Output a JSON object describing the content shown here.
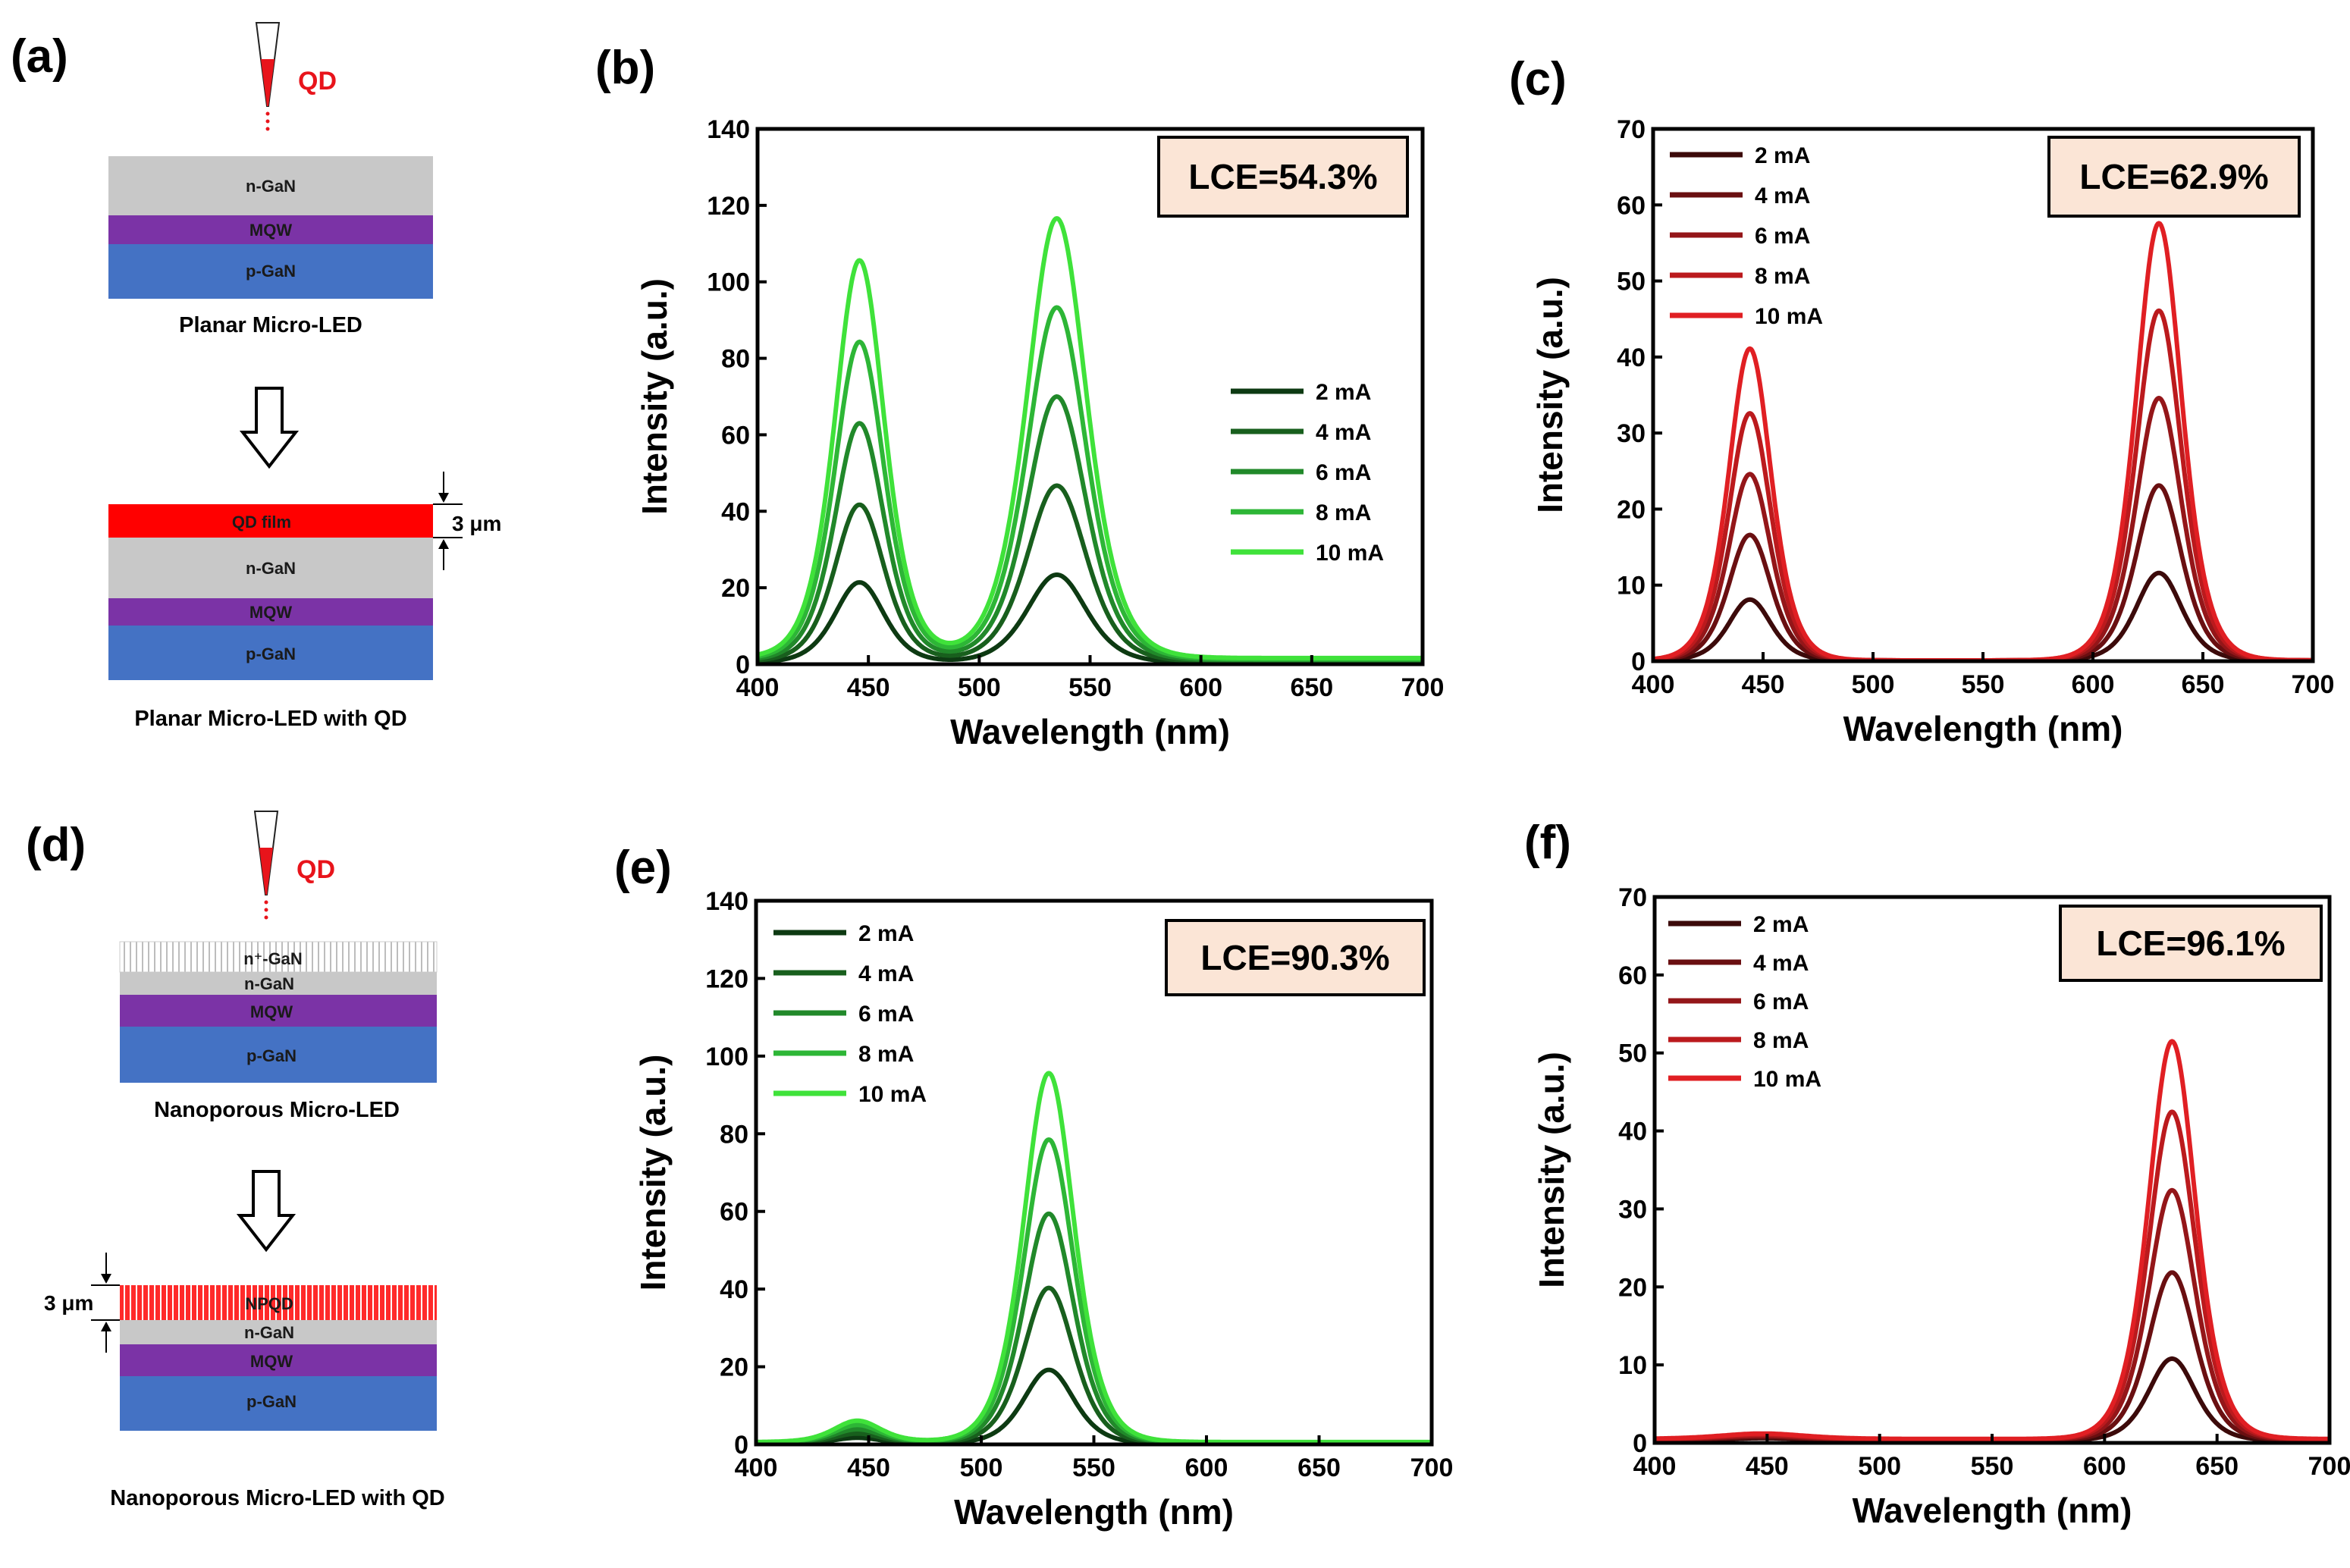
{
  "panel_labels": {
    "a": "(a)",
    "b": "(b)",
    "c": "(c)",
    "d": "(d)",
    "e": "(e)",
    "f": "(f)"
  },
  "colors": {
    "green": [
      "#0d3a12",
      "#185f1d",
      "#21892a",
      "#2db636",
      "#3fe23a"
    ],
    "red": [
      "#3c0a0a",
      "#6a0f11",
      "#941619",
      "#bb1a1d",
      "#e01f23"
    ],
    "ngan": "#c8c8c8",
    "mqw": "#7b33a6",
    "pgan": "#4472c4",
    "qd": "#ff1a1a",
    "lce_box": "#fbe5d6"
  },
  "schematics": {
    "a": {
      "dropper_label": "QD",
      "layers": [
        "n-GaN",
        "MQW",
        "p-GaN"
      ],
      "caption": "Planar Micro-LED"
    },
    "a2": {
      "layers": [
        "QD film",
        "n-GaN",
        "MQW",
        "p-GaN"
      ],
      "thickness": "3 μm",
      "caption": "Planar Micro-LED with QD"
    },
    "d": {
      "dropper_label": "QD",
      "layers": [
        "n⁺-GaN",
        "n-GaN",
        "MQW",
        "p-GaN"
      ],
      "caption": "Nanoporous Micro-LED"
    },
    "d2": {
      "layers": [
        "NPQD",
        "n-GaN",
        "MQW",
        "p-GaN"
      ],
      "thickness": "3 μm",
      "caption": "Nanoporous Micro-LED with QD"
    }
  },
  "chart_data": [
    {
      "panel": "b",
      "type": "line",
      "xlabel": "Wavelength (nm)",
      "ylabel": "Intensity (a.u.)",
      "xlim": [
        400,
        700
      ],
      "ylim": [
        0,
        140
      ],
      "xticks": [
        400,
        450,
        500,
        550,
        600,
        650,
        700
      ],
      "yticks": [
        0,
        20,
        40,
        60,
        80,
        100,
        120,
        140
      ],
      "annotation": "LCE=54.3%",
      "legend_position": "middle-right",
      "palette": "green",
      "series": [
        {
          "name": "2 mA",
          "peaks": [
            {
              "center": 446,
              "height": 21,
              "width": 15
            },
            {
              "center": 535,
              "height": 23,
              "width": 18
            }
          ],
          "baseline": 0.4
        },
        {
          "name": "4 mA",
          "peaks": [
            {
              "center": 446,
              "height": 41,
              "width": 15
            },
            {
              "center": 535,
              "height": 46,
              "width": 18
            }
          ],
          "baseline": 0.7
        },
        {
          "name": "6 mA",
          "peaks": [
            {
              "center": 446,
              "height": 62,
              "width": 15
            },
            {
              "center": 535,
              "height": 69,
              "width": 18
            }
          ],
          "baseline": 1.0
        },
        {
          "name": "8 mA",
          "peaks": [
            {
              "center": 446,
              "height": 83,
              "width": 15
            },
            {
              "center": 535,
              "height": 92,
              "width": 18
            }
          ],
          "baseline": 1.3
        },
        {
          "name": "10 mA",
          "peaks": [
            {
              "center": 446,
              "height": 104,
              "width": 15
            },
            {
              "center": 535,
              "height": 115,
              "width": 18
            }
          ],
          "baseline": 1.6
        }
      ]
    },
    {
      "panel": "c",
      "type": "line",
      "xlabel": "Wavelength (nm)",
      "ylabel": "Intensity (a.u.)",
      "xlim": [
        400,
        700
      ],
      "ylim": [
        0,
        70
      ],
      "xticks": [
        400,
        450,
        500,
        550,
        600,
        650,
        700
      ],
      "yticks": [
        0,
        10,
        20,
        30,
        40,
        50,
        60,
        70
      ],
      "annotation": "LCE=62.9%",
      "legend_position": "top-left",
      "palette": "red",
      "series": [
        {
          "name": "2 mA",
          "peaks": [
            {
              "center": 444,
              "height": 8,
              "width": 13
            },
            {
              "center": 630,
              "height": 11.5,
              "width": 14
            }
          ],
          "baseline": 0.1
        },
        {
          "name": "4 mA",
          "peaks": [
            {
              "center": 444,
              "height": 16.5,
              "width": 13
            },
            {
              "center": 630,
              "height": 23,
              "width": 14
            }
          ],
          "baseline": 0.1
        },
        {
          "name": "6 mA",
          "peaks": [
            {
              "center": 444,
              "height": 24.5,
              "width": 13
            },
            {
              "center": 630,
              "height": 34.5,
              "width": 14
            }
          ],
          "baseline": 0.1
        },
        {
          "name": "8 mA",
          "peaks": [
            {
              "center": 444,
              "height": 32.5,
              "width": 13
            },
            {
              "center": 630,
              "height": 46,
              "width": 14
            }
          ],
          "baseline": 0.1
        },
        {
          "name": "10 mA",
          "peaks": [
            {
              "center": 444,
              "height": 41,
              "width": 13
            },
            {
              "center": 630,
              "height": 57.5,
              "width": 14
            }
          ],
          "baseline": 0.1
        }
      ]
    },
    {
      "panel": "e",
      "type": "line",
      "xlabel": "Wavelength (nm)",
      "ylabel": "Intensity (a.u.)",
      "xlim": [
        400,
        700
      ],
      "ylim": [
        0,
        140
      ],
      "xticks": [
        400,
        450,
        500,
        550,
        600,
        650,
        700
      ],
      "yticks": [
        0,
        20,
        40,
        60,
        80,
        100,
        120,
        140
      ],
      "annotation": "LCE=90.3%",
      "legend_position": "top-left",
      "palette": "green",
      "series": [
        {
          "name": "2 mA",
          "peaks": [
            {
              "center": 445,
              "height": 1.5,
              "width": 14
            },
            {
              "center": 530,
              "height": 19,
              "width": 15
            }
          ],
          "baseline": 0.2
        },
        {
          "name": "4 mA",
          "peaks": [
            {
              "center": 445,
              "height": 2.5,
              "width": 14
            },
            {
              "center": 530,
              "height": 40,
              "width": 15
            }
          ],
          "baseline": 0.3
        },
        {
          "name": "6 mA",
          "peaks": [
            {
              "center": 445,
              "height": 3.5,
              "width": 14
            },
            {
              "center": 530,
              "height": 59,
              "width": 15
            }
          ],
          "baseline": 0.4
        },
        {
          "name": "8 mA",
          "peaks": [
            {
              "center": 445,
              "height": 4.5,
              "width": 14
            },
            {
              "center": 530,
              "height": 78,
              "width": 15
            }
          ],
          "baseline": 0.5
        },
        {
          "name": "10 mA",
          "peaks": [
            {
              "center": 445,
              "height": 5.5,
              "width": 14
            },
            {
              "center": 530,
              "height": 95,
              "width": 15
            }
          ],
          "baseline": 0.6
        }
      ]
    },
    {
      "panel": "f",
      "type": "line",
      "xlabel": "Wavelength (nm)",
      "ylabel": "Intensity (a.u.)",
      "xlim": [
        400,
        700
      ],
      "ylim": [
        0,
        70
      ],
      "xticks": [
        400,
        450,
        500,
        550,
        600,
        650,
        700
      ],
      "yticks": [
        0,
        10,
        20,
        30,
        40,
        50,
        60,
        70
      ],
      "annotation": "LCE=96.1%",
      "legend_position": "top-left",
      "palette": "red",
      "series": [
        {
          "name": "2 mA",
          "peaks": [
            {
              "center": 448,
              "height": 0.3,
              "width": 25
            },
            {
              "center": 630,
              "height": 10.5,
              "width": 14
            }
          ],
          "baseline": 0.3
        },
        {
          "name": "4 mA",
          "peaks": [
            {
              "center": 448,
              "height": 0.4,
              "width": 25
            },
            {
              "center": 630,
              "height": 21.5,
              "width": 14
            }
          ],
          "baseline": 0.35
        },
        {
          "name": "6 mA",
          "peaks": [
            {
              "center": 448,
              "height": 0.5,
              "width": 25
            },
            {
              "center": 630,
              "height": 32,
              "width": 14
            }
          ],
          "baseline": 0.4
        },
        {
          "name": "8 mA",
          "peaks": [
            {
              "center": 448,
              "height": 0.6,
              "width": 25
            },
            {
              "center": 630,
              "height": 42,
              "width": 14
            }
          ],
          "baseline": 0.45
        },
        {
          "name": "10 mA",
          "peaks": [
            {
              "center": 448,
              "height": 0.7,
              "width": 25
            },
            {
              "center": 630,
              "height": 51,
              "width": 14
            }
          ],
          "baseline": 0.5
        }
      ]
    }
  ]
}
